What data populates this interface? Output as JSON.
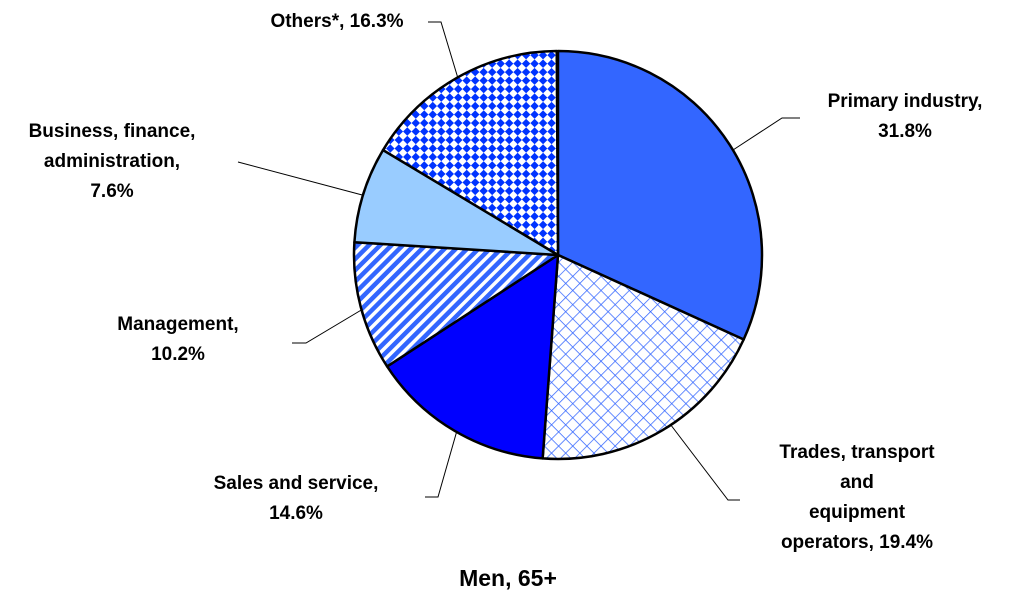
{
  "chart_data": {
    "type": "pie",
    "title": "Men, 65+",
    "categories": [
      "Primary industry,",
      "Trades, transport\nand\nequipment\noperators,",
      "Sales and service,",
      "Management,",
      "Business, finance,\nadministration,",
      "Others*,"
    ],
    "values": [
      31.8,
      19.4,
      14.6,
      10.2,
      7.6,
      16.3
    ],
    "value_labels": [
      "31.8%",
      "19.4%",
      "14.6%",
      "10.2%",
      "7.6%",
      "16.3%"
    ],
    "colors": [
      "#3366ff",
      "#3366ff",
      "#0000ff",
      "#3366ff",
      "#99ccff",
      "#0033ff"
    ],
    "patterns": [
      "solid",
      "crosshatch",
      "solid",
      "stripes",
      "solid",
      "checker"
    ]
  }
}
